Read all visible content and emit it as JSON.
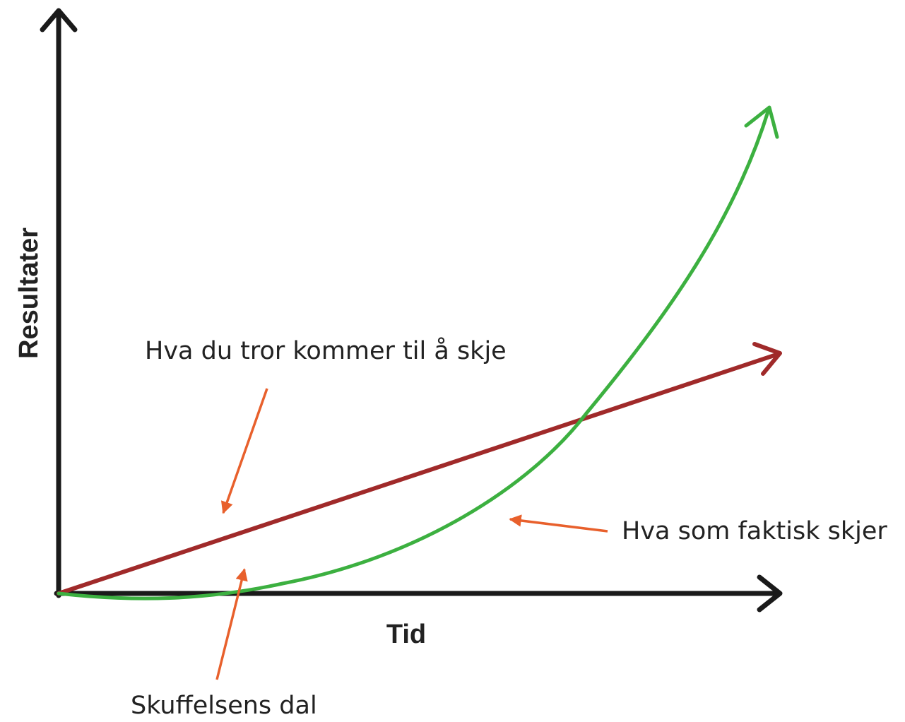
{
  "axes": {
    "y_label": "Resultater",
    "x_label": "Tid"
  },
  "annotations": {
    "expected": "Hva du tror kommer til å skje",
    "actual": "Hva som faktisk skjer",
    "valley": "Skuffelsens dal"
  }
}
